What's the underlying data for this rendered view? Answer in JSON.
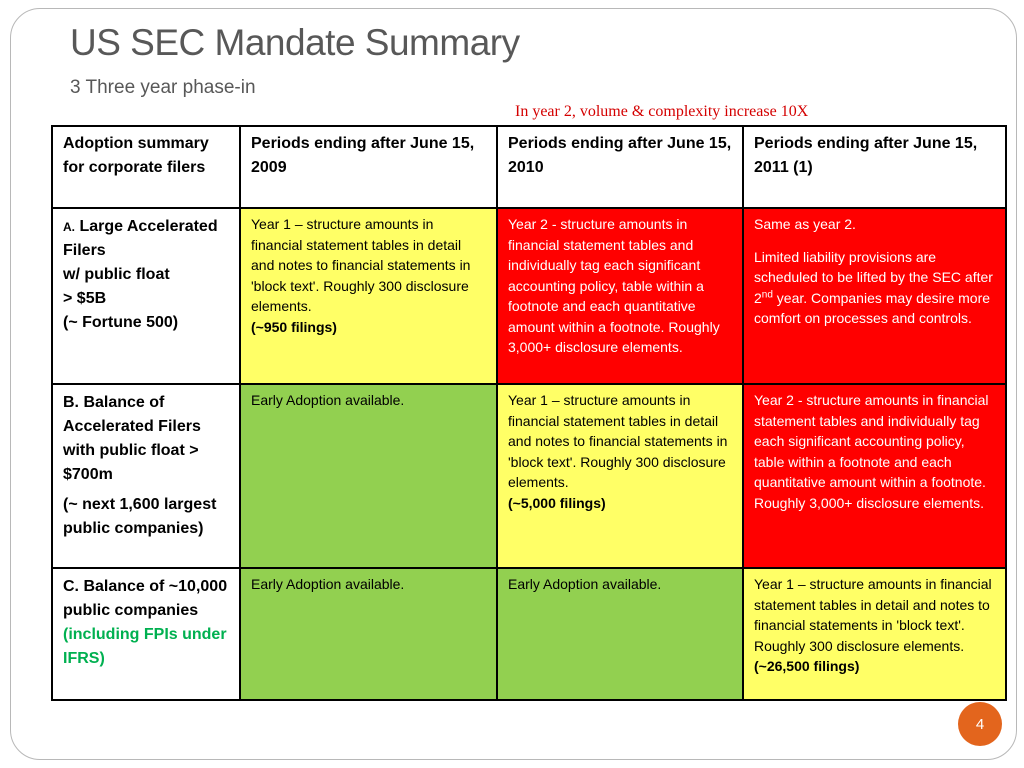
{
  "slide": {
    "title": "US SEC Mandate Summary",
    "subtitle": "3 Three year phase-in",
    "note": "In year 2, volume & complexity increase 10X",
    "page_number": "4"
  },
  "table": {
    "headers": [
      "Adoption summary for corporate filers",
      "Periods ending after June 15, 2009",
      "Periods ending after June 15, 2010",
      "Periods ending after June 15, 2011 (1)"
    ],
    "row_a": {
      "label_prefix": "A.",
      "label_lines": [
        "Large Accelerated Filers",
        "w/ public float",
        "> $5B",
        "(~ Fortune 500)"
      ],
      "cells": [
        {
          "color": "#ffff66",
          "text": "Year 1 – structure amounts in financial statement tables in detail and notes to financial statements in 'block text'.  Roughly 300 disclosure elements.",
          "bold": "(~950 filings)"
        },
        {
          "color": "#ff0000",
          "text": "Year 2 -  structure amounts in financial statement tables and individually tag each significant accounting policy, table within a footnote and each quantitative amount within a footnote.    Roughly 3,000+ disclosure elements."
        },
        {
          "color": "#ff0000",
          "text": "Same as year 2.",
          "para2_a": "Limited liability provisions are scheduled to be lifted by the SEC after 2",
          "para2_sup": "nd",
          "para2_b": " year.  Companies may desire more comfort on processes and controls."
        }
      ]
    },
    "row_b": {
      "label_line1": "B. Balance of Accelerated Filers with public float > $700m",
      "label_line2": "(~ next 1,600 largest public companies)",
      "cells": [
        {
          "color": "#92d050",
          "text": "Early Adoption available."
        },
        {
          "color": "#ffff66",
          "text": "Year 1 – structure amounts in financial statement tables in detail and notes to financial statements in 'block text'.  Roughly 300 disclosure elements.",
          "bold": "(~5,000 filings)"
        },
        {
          "color": "#ff0000",
          "text": "Year 2 -  structure amounts in financial statement tables and individually tag each significant accounting policy, table within a footnote and each quantitative amount within a footnote.  Roughly 3,000+ disclosure elements."
        }
      ]
    },
    "row_c": {
      "label_main": "C. Balance of ~10,000 public companies",
      "label_green": "(including FPIs under IFRS)",
      "cells": [
        {
          "color": "#92d050",
          "text": "Early Adoption available."
        },
        {
          "color": "#92d050",
          "text": "Early Adoption available."
        },
        {
          "color": "#ffff66",
          "text": "Year 1 – structure amounts in financial statement tables in detail and notes to financial statements in 'block text'.  Roughly 300 disclosure elements. ",
          "bold": "(~26,500 filings)"
        }
      ]
    }
  },
  "colors": {
    "title": "#585858",
    "note": "#d40000",
    "year1_yellow": "#ffff66",
    "year2_red": "#ff0000",
    "early_green": "#92d050",
    "fpi_green_text": "#00b050",
    "badge_orange": "#e3651d"
  }
}
